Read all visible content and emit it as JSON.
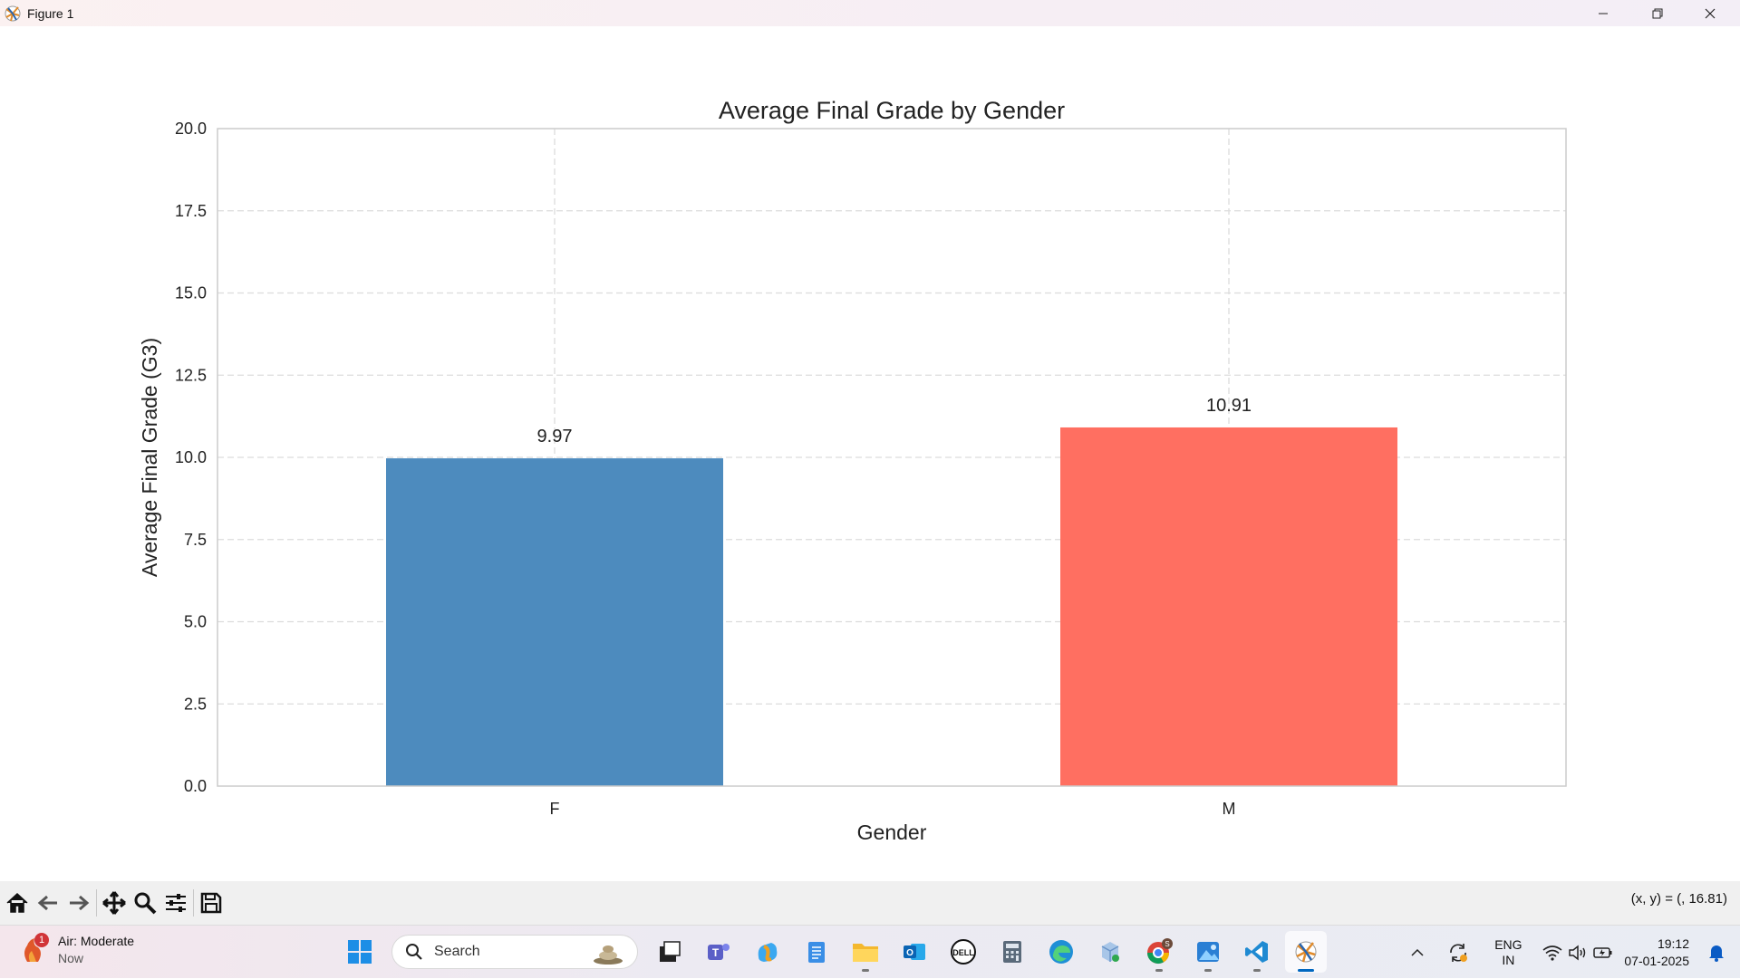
{
  "window": {
    "title": "Figure 1",
    "controls": [
      "minimize",
      "restore",
      "close"
    ]
  },
  "chart_data": {
    "type": "bar",
    "title": "Average Final Grade by Gender",
    "xlabel": "Gender",
    "ylabel": "Average Final Grade (G3)",
    "categories": [
      "F",
      "M"
    ],
    "values": [
      9.97,
      10.91
    ],
    "value_labels": [
      "9.97",
      "10.91"
    ],
    "colors": [
      "#4d8bbe",
      "#ff6f61"
    ],
    "ylim": [
      0,
      20
    ],
    "yticks": [
      0.0,
      2.5,
      5.0,
      7.5,
      10.0,
      12.5,
      15.0,
      17.5,
      20.0
    ],
    "ytick_labels": [
      "0.0",
      "2.5",
      "5.0",
      "7.5",
      "10.0",
      "12.5",
      "15.0",
      "17.5",
      "20.0"
    ],
    "grid": true,
    "grid_style": "dashed"
  },
  "toolbar": {
    "buttons": [
      "home-icon",
      "back-icon",
      "forward-icon",
      "pan-icon",
      "zoom-icon",
      "configure-icon",
      "save-icon"
    ],
    "coords": "(x, y) = (, 16.81)"
  },
  "taskbar": {
    "weather_line1": "Air: Moderate",
    "weather_line2": "Now",
    "weather_badge": "1",
    "search_placeholder": "Search",
    "lang_line1": "ENG",
    "lang_line2": "IN",
    "time": "19:12",
    "date": "07-01-2025",
    "chrome_badge": "S"
  }
}
